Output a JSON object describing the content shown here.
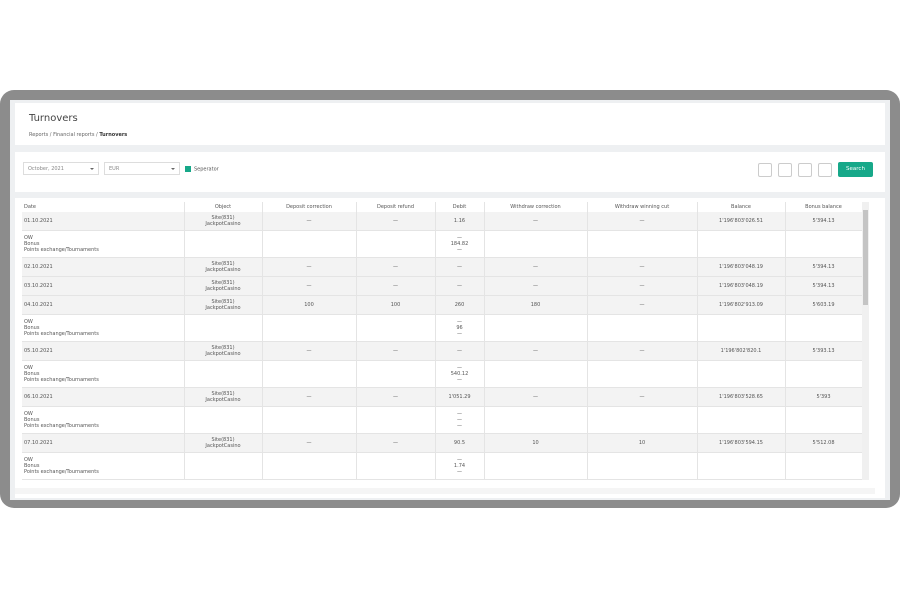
{
  "header": {
    "title": "Turnovers",
    "breadcrumb": [
      "Reports",
      "Financial reports",
      "Turnovers"
    ]
  },
  "filters": {
    "period": "October, 2021",
    "currency": "EUR",
    "separator": "Seperator",
    "search": "Search"
  },
  "table": {
    "columns": [
      "Date",
      "Object",
      "Deposit correction",
      "Deposit refund",
      "Debit",
      "Withdraw correction",
      "Withdraw winning cut",
      "Balance",
      "Bonus balance"
    ],
    "rows": [
      {
        "date": "01.10.2021",
        "object": [
          "Site(831)",
          "JackpotCasino"
        ],
        "values": [
          "—",
          "—",
          "1.16",
          "—",
          "—",
          "1'196'803'026.51",
          "5'394.13"
        ],
        "sub": {
          "labels": [
            "OW",
            "Bonus",
            "Points exchange/Tournaments"
          ],
          "debit": [
            "—",
            "184.82",
            "—"
          ]
        }
      },
      {
        "date": "02.10.2021",
        "object": [
          "Site(831)",
          "JackpotCasino"
        ],
        "values": [
          "—",
          "—",
          "—",
          "—",
          "—",
          "1'196'803'048.19",
          "5'394.13"
        ]
      },
      {
        "date": "03.10.2021",
        "object": [
          "Site(831)",
          "JackpotCasino"
        ],
        "values": [
          "—",
          "—",
          "—",
          "—",
          "—",
          "1'196'803'048.19",
          "5'394.13"
        ]
      },
      {
        "date": "04.10.2021",
        "object": [
          "Site(831)",
          "JackpotCasino"
        ],
        "values": [
          "100",
          "100",
          "260",
          "180",
          "—",
          "1'196'802'913.09",
          "5'603.19"
        ],
        "sub": {
          "labels": [
            "OW",
            "Bonus",
            "Points exchange/Tournaments"
          ],
          "debit": [
            "—",
            "96",
            "—"
          ]
        }
      },
      {
        "date": "05.10.2021",
        "object": [
          "Site(831)",
          "JackpotCasino"
        ],
        "values": [
          "—",
          "—",
          "—",
          "—",
          "—",
          "1'196'802'820.1",
          "5'393.13"
        ],
        "sub": {
          "labels": [
            "OW",
            "Bonus",
            "Points exchange/Tournaments"
          ],
          "debit": [
            "—",
            "540.12",
            "—"
          ]
        }
      },
      {
        "date": "06.10.2021",
        "object": [
          "Site(831)",
          "JackpotCasino"
        ],
        "values": [
          "—",
          "—",
          "1'051.29",
          "—",
          "—",
          "1'196'803'528.65",
          "5'393"
        ],
        "sub": {
          "labels": [
            "OW",
            "Bonus",
            "Points exchange/Tournaments"
          ],
          "debit": [
            "—",
            "—",
            "—"
          ]
        }
      },
      {
        "date": "07.10.2021",
        "object": [
          "Site(831)",
          "JackpotCasino"
        ],
        "values": [
          "—",
          "—",
          "90.5",
          "10",
          "10",
          "1'196'803'594.15",
          "5'512.08"
        ],
        "sub": {
          "labels": [
            "OW",
            "Bonus",
            "Points exchange/Tournaments"
          ],
          "debit": [
            "—",
            "1.74",
            "—"
          ]
        }
      }
    ]
  }
}
